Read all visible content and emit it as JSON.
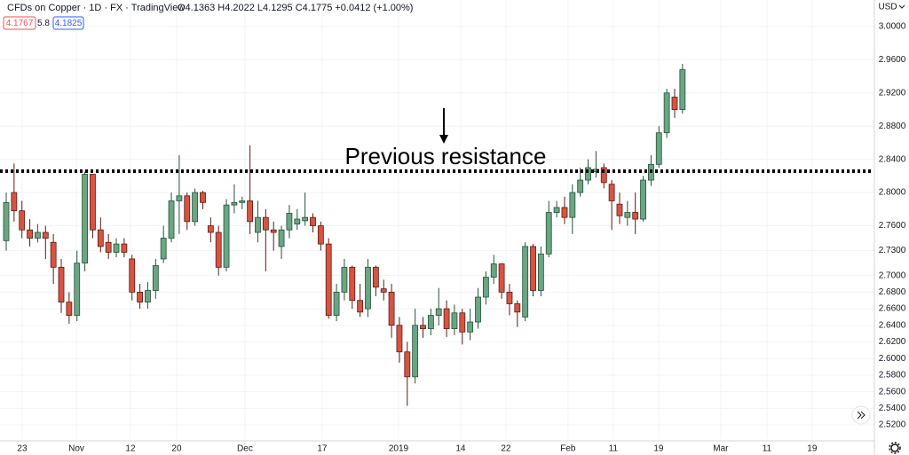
{
  "chart_data": {
    "type": "candlestick",
    "symbol": "CFDs on Copper · 1D · FX · TradingView",
    "ohlc_text": "O4.1363 H4.2022 L4.1295 C4.1775 +0.0412 (+1.00%)",
    "badges": [
      "4.1767",
      "5.8",
      "4.1825"
    ],
    "currency": "USD",
    "annotation": "Previous resistance",
    "resistance_level": 2.8257,
    "up_color": "#6ba583",
    "down_color": "#d75442",
    "open": [
      2.742,
      2.8,
      2.778,
      2.755,
      2.745,
      2.752,
      2.74,
      2.71,
      2.668,
      2.652,
      2.715,
      2.822,
      2.755,
      2.74,
      2.728,
      2.738,
      2.72,
      2.68,
      2.668,
      2.682,
      2.72,
      2.745,
      2.79,
      2.796,
      2.765,
      2.8,
      2.76,
      2.752,
      2.71,
      2.785,
      2.788,
      2.79,
      2.752,
      2.77,
      2.755,
      2.735,
      2.755,
      2.762,
      2.766,
      2.77,
      2.76,
      2.738,
      2.652,
      2.68,
      2.71,
      2.67,
      2.66,
      2.71,
      2.684,
      2.68,
      2.64,
      2.608,
      2.578,
      2.64,
      2.636,
      2.652,
      2.66,
      2.636,
      2.655,
      2.632,
      2.644,
      2.674,
      2.698,
      2.714,
      2.68,
      2.666,
      2.65,
      2.735,
      2.682,
      2.726,
      2.776,
      2.782,
      2.77,
      2.8,
      2.815,
      2.825,
      2.83,
      2.81,
      2.786,
      2.77,
      2.776,
      2.768,
      2.815,
      2.834,
      2.872,
      2.915,
      2.9
    ],
    "high": [
      2.8,
      2.835,
      2.79,
      2.768,
      2.762,
      2.76,
      2.75,
      2.72,
      2.68,
      2.73,
      2.825,
      2.822,
      2.77,
      2.75,
      2.745,
      2.745,
      2.725,
      2.69,
      2.692,
      2.72,
      2.76,
      2.8,
      2.845,
      2.8,
      2.805,
      2.802,
      2.77,
      2.76,
      2.792,
      2.81,
      2.795,
      2.857,
      2.79,
      2.78,
      2.765,
      2.76,
      2.785,
      2.78,
      2.8,
      2.775,
      2.765,
      2.745,
      2.69,
      2.72,
      2.712,
      2.69,
      2.72,
      2.712,
      2.695,
      2.69,
      2.65,
      2.62,
      2.66,
      2.65,
      2.66,
      2.685,
      2.67,
      2.665,
      2.66,
      2.66,
      2.685,
      2.705,
      2.725,
      2.715,
      2.69,
      2.67,
      2.74,
      2.738,
      2.735,
      2.79,
      2.79,
      2.795,
      2.81,
      2.83,
      2.84,
      2.85,
      2.835,
      2.815,
      2.8,
      2.79,
      2.8,
      2.82,
      2.845,
      2.88,
      2.925,
      2.925,
      2.955
    ],
    "low": [
      2.73,
      2.765,
      2.745,
      2.735,
      2.74,
      2.72,
      2.69,
      2.655,
      2.642,
      2.645,
      2.705,
      2.745,
      2.728,
      2.72,
      2.722,
      2.722,
      2.67,
      2.66,
      2.66,
      2.672,
      2.715,
      2.74,
      2.75,
      2.755,
      2.76,
      2.78,
      2.74,
      2.7,
      2.705,
      2.775,
      2.78,
      2.75,
      2.74,
      2.705,
      2.73,
      2.72,
      2.745,
      2.755,
      2.76,
      2.752,
      2.73,
      2.648,
      2.645,
      2.67,
      2.66,
      2.65,
      2.65,
      2.675,
      2.67,
      2.625,
      2.595,
      2.543,
      2.57,
      2.625,
      2.628,
      2.64,
      2.626,
      2.628,
      2.617,
      2.622,
      2.636,
      2.665,
      2.69,
      2.672,
      2.652,
      2.638,
      2.645,
      2.675,
      2.675,
      2.722,
      2.77,
      2.762,
      2.75,
      2.795,
      2.81,
      2.818,
      2.805,
      2.755,
      2.762,
      2.76,
      2.75,
      2.765,
      2.808,
      2.83,
      2.866,
      2.89,
      2.895
    ],
    "close": [
      2.788,
      2.778,
      2.755,
      2.745,
      2.752,
      2.745,
      2.71,
      2.668,
      2.652,
      2.715,
      2.822,
      2.755,
      2.735,
      2.728,
      2.738,
      2.728,
      2.68,
      2.668,
      2.682,
      2.712,
      2.745,
      2.79,
      2.796,
      2.765,
      2.8,
      2.788,
      2.752,
      2.71,
      2.785,
      2.788,
      2.79,
      2.765,
      2.77,
      2.755,
      2.752,
      2.755,
      2.775,
      2.768,
      2.77,
      2.76,
      2.738,
      2.652,
      2.68,
      2.71,
      2.67,
      2.656,
      2.71,
      2.686,
      2.68,
      2.64,
      2.608,
      2.578,
      2.64,
      2.636,
      2.652,
      2.66,
      2.636,
      2.655,
      2.632,
      2.644,
      2.674,
      2.698,
      2.714,
      2.68,
      2.666,
      2.656,
      2.735,
      2.682,
      2.726,
      2.776,
      2.782,
      2.77,
      2.8,
      2.815,
      2.83,
      2.828,
      2.812,
      2.79,
      2.772,
      2.776,
      2.768,
      2.815,
      2.834,
      2.872,
      2.92,
      2.9,
      2.948
    ],
    "xlim": [
      -0.79,
      110.4
    ],
    "xticks": [
      {
        "value": 2.03,
        "label": "23"
      },
      {
        "value": 8.92,
        "label": "Nov"
      },
      {
        "value": 15.8,
        "label": "12"
      },
      {
        "value": 21.67,
        "label": "20"
      },
      {
        "value": 30.36,
        "label": "Dec"
      },
      {
        "value": 40.18,
        "label": "17"
      },
      {
        "value": 49.89,
        "label": "2019"
      },
      {
        "value": 57.79,
        "label": "14"
      },
      {
        "value": 63.54,
        "label": "22"
      },
      {
        "value": 71.44,
        "label": "Feb"
      },
      {
        "value": 77.2,
        "label": "11"
      },
      {
        "value": 82.96,
        "label": "19"
      },
      {
        "value": 90.86,
        "label": "Mar"
      },
      {
        "value": 96.73,
        "label": "11"
      },
      {
        "value": 102.48,
        "label": "19"
      }
    ],
    "ylim": [
      2.503,
      3.032
    ],
    "yticks": [
      {
        "value": 3.0,
        "label": "3.0000"
      },
      {
        "value": 2.96,
        "label": "2.9600"
      },
      {
        "value": 2.92,
        "label": "2.9200"
      },
      {
        "value": 2.88,
        "label": "2.8800"
      },
      {
        "value": 2.84,
        "label": "2.8400"
      },
      {
        "value": 2.8,
        "label": "2.8000"
      },
      {
        "value": 2.76,
        "label": "2.7600"
      },
      {
        "value": 2.73,
        "label": "2.7300"
      },
      {
        "value": 2.7,
        "label": "2.7000"
      },
      {
        "value": 2.68,
        "label": "2.6800"
      },
      {
        "value": 2.66,
        "label": "2.6600"
      },
      {
        "value": 2.64,
        "label": "2.6400"
      },
      {
        "value": 2.62,
        "label": "2.6200"
      },
      {
        "value": 2.6,
        "label": "2.6000"
      },
      {
        "value": 2.58,
        "label": "2.5800"
      },
      {
        "value": 2.56,
        "label": "2.5600"
      },
      {
        "value": 2.54,
        "label": "2.5400"
      },
      {
        "value": 2.52,
        "label": "2.5200"
      }
    ],
    "grid": true
  }
}
